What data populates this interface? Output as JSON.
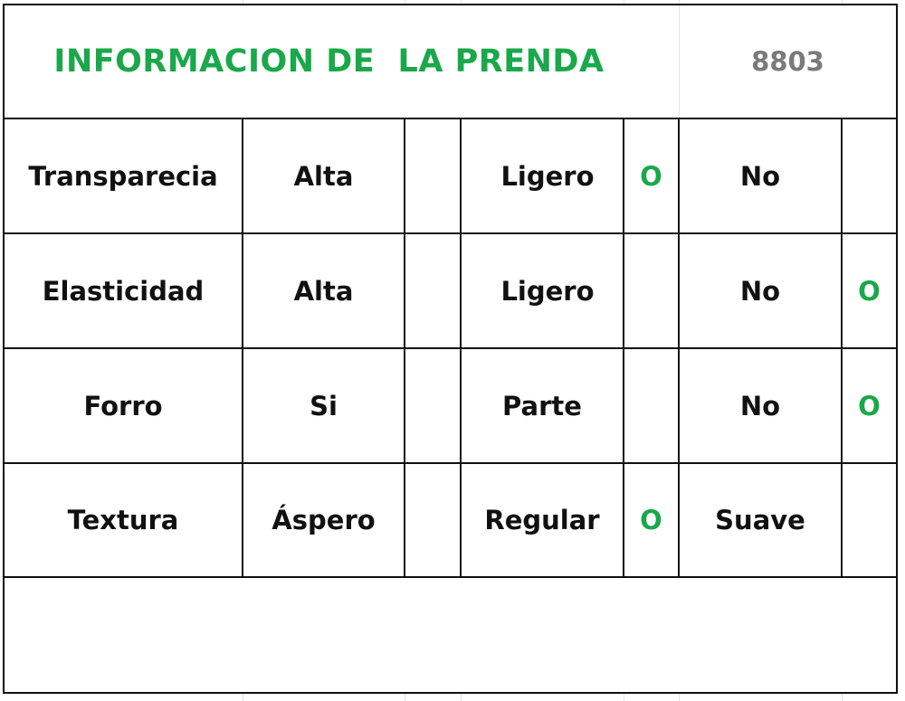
{
  "header": {
    "title": "INFORMACION DE  LA PRENDA",
    "code": "8803"
  },
  "rows": [
    {
      "label": "Transparecia",
      "c1": "Alta",
      "c1_mark": "",
      "c2": "Ligero",
      "c2_mark": "O",
      "c3": "No",
      "c3_mark": ""
    },
    {
      "label": "Elasticidad",
      "c1": "Alta",
      "c1_mark": "",
      "c2": "Ligero",
      "c2_mark": "",
      "c3": "No",
      "c3_mark": "O"
    },
    {
      "label": "Forro",
      "c1": "Si",
      "c1_mark": "",
      "c2": "Parte",
      "c2_mark": "",
      "c3": "No",
      "c3_mark": "O"
    },
    {
      "label": "Textura",
      "c1": "Áspero",
      "c1_mark": "",
      "c2": "Regular",
      "c2_mark": "O",
      "c3": "Suave",
      "c3_mark": ""
    }
  ],
  "colors": {
    "accent": "#1aa84a",
    "code": "#7a7a7a",
    "border": "#111111"
  }
}
